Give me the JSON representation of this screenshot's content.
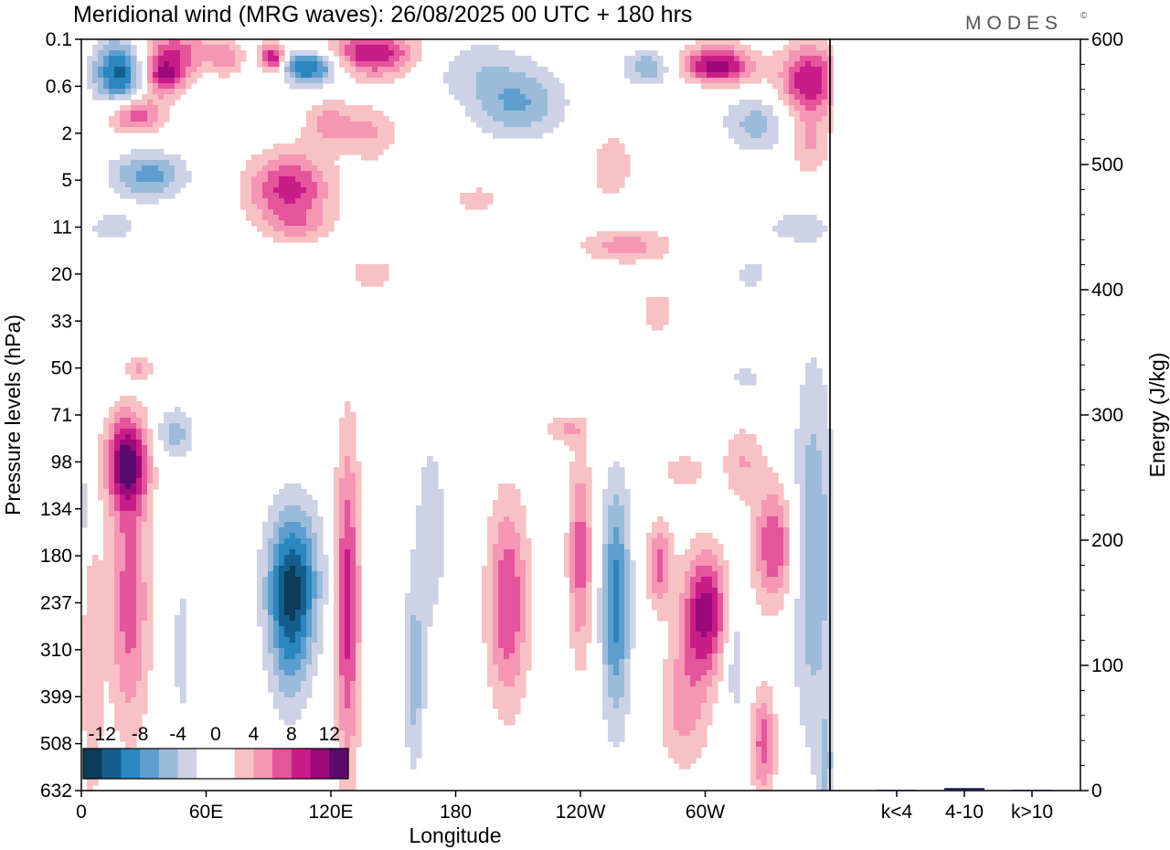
{
  "chart_data": {
    "type": "heatmap",
    "title": "Meridional wind (MRG waves):  26/08/2025  00 UTC  + 180 hrs",
    "logo": "MODES",
    "logo_mark": "©",
    "xlabel": "Longitude",
    "ylabel": "Pressure levels (hPa)",
    "y2label": "Energy (J/kg)",
    "x_ticks": [
      "0",
      "60E",
      "120E",
      "180",
      "120W",
      "60W"
    ],
    "x_tick_values": [
      0,
      60,
      120,
      180,
      240,
      300
    ],
    "x_range": [
      0,
      360
    ],
    "y_ticks": [
      "0.1",
      "0.6",
      "2",
      "5",
      "11",
      "20",
      "33",
      "50",
      "71",
      "98",
      "134",
      "180",
      "237",
      "310",
      "399",
      "508",
      "632"
    ],
    "y2_ticks": [
      "0",
      "100",
      "200",
      "300",
      "400",
      "500",
      "600"
    ],
    "y2_range": [
      0,
      600
    ],
    "colorbar": {
      "labels": [
        "-12",
        "-8",
        "-4",
        "0",
        "4",
        "8",
        "12"
      ],
      "colors": [
        "#0d3b5a",
        "#145f8e",
        "#2a87bf",
        "#5e9ecf",
        "#9cbad9",
        "#cdd2e6",
        "#ffffff",
        "#ffffff",
        "#f8c1c3",
        "#f596b5",
        "#e4559b",
        "#c81d88",
        "#9c0a7a",
        "#5b0a6e"
      ]
    },
    "energy_bars": {
      "categories": [
        "k<4",
        "4-10",
        "k>10"
      ],
      "values": [
        0,
        2,
        0
      ],
      "color": "#1a1a4a"
    },
    "blobs": [
      {
        "lon": 18,
        "lev": 0.7,
        "w": 12,
        "h": 0.7,
        "v": -11
      },
      {
        "lon": 26,
        "lev": 1.6,
        "w": 14,
        "h": 0.4,
        "v": 8
      },
      {
        "lon": 32,
        "lev": 2.9,
        "w": 18,
        "h": 0.5,
        "v": -7
      },
      {
        "lon": 40,
        "lev": 0.8,
        "w": 10,
        "h": 0.4,
        "v": 9
      },
      {
        "lon": 45,
        "lev": 0.25,
        "w": 18,
        "h": 0.5,
        "v": 7
      },
      {
        "lon": 70,
        "lev": 0.4,
        "w": 8,
        "h": 0.35,
        "v": 5
      },
      {
        "lon": 92,
        "lev": 0.4,
        "w": 6,
        "h": 0.3,
        "v": 11
      },
      {
        "lon": 110,
        "lev": 0.6,
        "w": 14,
        "h": 0.35,
        "v": -11
      },
      {
        "lon": 140,
        "lev": 0.3,
        "w": 22,
        "h": 0.5,
        "v": 10
      },
      {
        "lon": 100,
        "lev": 3.2,
        "w": 20,
        "h": 0.8,
        "v": 9
      },
      {
        "lon": 120,
        "lev": 1.8,
        "w": 12,
        "h": 0.5,
        "v": 5
      },
      {
        "lon": 140,
        "lev": 2.0,
        "w": 12,
        "h": 0.6,
        "v": 4
      },
      {
        "lon": 210,
        "lev": 1.4,
        "w": 22,
        "h": 0.7,
        "v": -6
      },
      {
        "lon": 190,
        "lev": 0.6,
        "w": 28,
        "h": 0.7,
        "v": -3
      },
      {
        "lon": 273,
        "lev": 0.6,
        "w": 12,
        "h": 0.35,
        "v": -6
      },
      {
        "lon": 305,
        "lev": 0.6,
        "w": 18,
        "h": 0.45,
        "v": 12
      },
      {
        "lon": 350,
        "lev": 0.9,
        "w": 14,
        "h": 0.8,
        "v": 10
      },
      {
        "lon": 325,
        "lev": 1.8,
        "w": 16,
        "h": 0.6,
        "v": -5
      },
      {
        "lon": 300,
        "lev": 1.0,
        "w": 16,
        "h": 0.4,
        "v": -3
      },
      {
        "lon": 255,
        "lev": 2.7,
        "w": 10,
        "h": 0.7,
        "v": 4
      },
      {
        "lon": 350,
        "lev": 2.3,
        "w": 10,
        "h": 0.6,
        "v": 4
      },
      {
        "lon": 190,
        "lev": 3.4,
        "w": 14,
        "h": 0.3,
        "v": 3
      },
      {
        "lon": 262,
        "lev": 4.4,
        "w": 22,
        "h": 0.35,
        "v": 5
      },
      {
        "lon": 105,
        "lev": 4.0,
        "w": 16,
        "h": 0.3,
        "v": 3
      },
      {
        "lon": 15,
        "lev": 4.0,
        "w": 14,
        "h": 0.35,
        "v": -3
      },
      {
        "lon": 345,
        "lev": 4.0,
        "w": 18,
        "h": 0.4,
        "v": -3
      },
      {
        "lon": 140,
        "lev": 5.0,
        "w": 10,
        "h": 0.3,
        "v": 4
      },
      {
        "lon": 277,
        "lev": 5.8,
        "w": 7,
        "h": 0.45,
        "v": 4
      },
      {
        "lon": 322,
        "lev": 5.0,
        "w": 9,
        "h": 0.35,
        "v": -3
      },
      {
        "lon": 28,
        "lev": 7.0,
        "w": 6,
        "h": 0.25,
        "v": 4
      },
      {
        "lon": 320,
        "lev": 7.2,
        "w": 8,
        "h": 0.25,
        "v": -3
      },
      {
        "lon": 22,
        "lev": 9.0,
        "w": 10,
        "h": 1.0,
        "v": 12
      },
      {
        "lon": 23,
        "lev": 12.0,
        "w": 10,
        "h": 2.8,
        "v": 7
      },
      {
        "lon": 5,
        "lev": 13.5,
        "w": 5,
        "h": 3.0,
        "v": 4
      },
      {
        "lon": 45,
        "lev": 8.4,
        "w": 9,
        "h": 0.55,
        "v": -5
      },
      {
        "lon": 48,
        "lev": 13.0,
        "w": 4,
        "h": 1.8,
        "v": -3
      },
      {
        "lon": 2,
        "lev": 10.0,
        "w": 4,
        "h": 0.8,
        "v": -4
      },
      {
        "lon": 102,
        "lev": 11.5,
        "w": 13,
        "h": 1.6,
        "v": -10
      },
      {
        "lon": 100,
        "lev": 12.8,
        "w": 10,
        "h": 1.8,
        "v": -5
      },
      {
        "lon": 128,
        "lev": 12.0,
        "w": 6,
        "h": 3.5,
        "v": 9
      },
      {
        "lon": 168,
        "lev": 10.5,
        "w": 9,
        "h": 2.5,
        "v": -3
      },
      {
        "lon": 160,
        "lev": 13.6,
        "w": 5,
        "h": 2.0,
        "v": -5
      },
      {
        "lon": 205,
        "lev": 12.0,
        "w": 10,
        "h": 2.2,
        "v": 8
      },
      {
        "lon": 240,
        "lev": 11.0,
        "w": 6,
        "h": 2.2,
        "v": 7
      },
      {
        "lon": 257,
        "lev": 12.0,
        "w": 7,
        "h": 2.5,
        "v": -9
      },
      {
        "lon": 278,
        "lev": 11.2,
        "w": 6,
        "h": 0.9,
        "v": 7
      },
      {
        "lon": 300,
        "lev": 12.2,
        "w": 11,
        "h": 1.3,
        "v": 11
      },
      {
        "lon": 290,
        "lev": 14.2,
        "w": 12,
        "h": 1.4,
        "v": 5
      },
      {
        "lon": 333,
        "lev": 10.8,
        "w": 10,
        "h": 1.3,
        "v": 8
      },
      {
        "lon": 328,
        "lev": 15.0,
        "w": 6,
        "h": 1.2,
        "v": 7
      },
      {
        "lon": 352,
        "lev": 11.0,
        "w": 10,
        "h": 4.0,
        "v": -6
      },
      {
        "lon": 314,
        "lev": 13.0,
        "w": 5,
        "h": 1.6,
        "v": -4
      },
      {
        "lon": 358,
        "lev": 15.5,
        "w": 4,
        "h": 1.2,
        "v": -4
      },
      {
        "lon": 232,
        "lev": 8.3,
        "w": 10,
        "h": 0.3,
        "v": 4
      },
      {
        "lon": 318,
        "lev": 9.0,
        "w": 10,
        "h": 0.8,
        "v": 4
      },
      {
        "lon": 290,
        "lev": 9.2,
        "w": 10,
        "h": 0.35,
        "v": 4
      }
    ]
  }
}
